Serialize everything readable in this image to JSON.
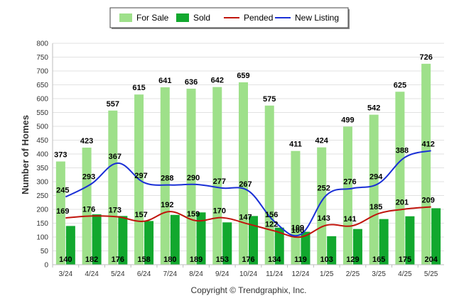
{
  "chart_data": {
    "type": "bar",
    "ylabel": "Number of Homes",
    "ylim": [
      0,
      800
    ],
    "yticks": [
      0,
      50,
      100,
      150,
      200,
      250,
      300,
      350,
      400,
      450,
      500,
      550,
      600,
      650,
      700,
      750,
      800
    ],
    "grid": true,
    "legend_position": "top-center",
    "categories": [
      "3/24",
      "4/24",
      "5/24",
      "6/24",
      "7/24",
      "8/24",
      "9/24",
      "10/24",
      "11/24",
      "12/24",
      "1/25",
      "2/25",
      "3/25",
      "4/25",
      "5/25"
    ],
    "series": [
      {
        "name": "For Sale",
        "kind": "bar",
        "color": "#9ee08a",
        "values": [
          373,
          423,
          557,
          615,
          641,
          636,
          642,
          659,
          575,
          411,
          424,
          499,
          542,
          625,
          726
        ]
      },
      {
        "name": "Sold",
        "kind": "bar",
        "color": "#12a82e",
        "values": [
          140,
          182,
          176,
          158,
          180,
          189,
          153,
          176,
          134,
          119,
          103,
          129,
          165,
          175,
          204
        ]
      },
      {
        "name": "Pended",
        "kind": "line",
        "color": "#c0140c",
        "values": [
          169,
          176,
          173,
          157,
          192,
          159,
          170,
          147,
          122,
          100,
          143,
          141,
          185,
          201,
          209
        ]
      },
      {
        "name": "New Listing",
        "kind": "line",
        "color": "#1a2fd6",
        "values": [
          245,
          293,
          367,
          297,
          288,
          290,
          277,
          267,
          156,
          109,
          252,
          276,
          294,
          388,
          412
        ]
      }
    ]
  },
  "footer": {
    "copyright": "Copyright © Trendgraphix, Inc."
  }
}
